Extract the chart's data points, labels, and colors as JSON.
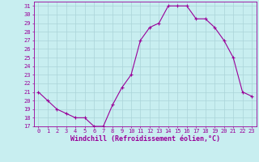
{
  "x": [
    0,
    1,
    2,
    3,
    4,
    5,
    6,
    7,
    8,
    9,
    10,
    11,
    12,
    13,
    14,
    15,
    16,
    17,
    18,
    19,
    20,
    21,
    22,
    23
  ],
  "y": [
    21,
    20,
    19,
    18.5,
    18,
    18,
    17,
    17,
    19.5,
    21.5,
    23,
    27,
    28.5,
    29,
    31,
    31,
    31,
    29.5,
    29.5,
    28.5,
    27,
    25,
    21,
    20.5
  ],
  "line_color": "#990099",
  "marker": "+",
  "marker_size": 3.5,
  "bg_color": "#c8eef0",
  "grid_color": "#aad4d8",
  "xlabel": "Windchill (Refroidissement éolien,°C)",
  "xlim": [
    -0.5,
    23.5
  ],
  "ylim": [
    17,
    31.5
  ],
  "yticks": [
    17,
    18,
    19,
    20,
    21,
    22,
    23,
    24,
    25,
    26,
    27,
    28,
    29,
    30,
    31
  ],
  "xticks": [
    0,
    1,
    2,
    3,
    4,
    5,
    6,
    7,
    8,
    9,
    10,
    11,
    12,
    13,
    14,
    15,
    16,
    17,
    18,
    19,
    20,
    21,
    22,
    23
  ],
  "tick_fontsize": 5.0,
  "xlabel_fontsize": 6.0,
  "line_width": 0.8,
  "marker_color": "#990099"
}
